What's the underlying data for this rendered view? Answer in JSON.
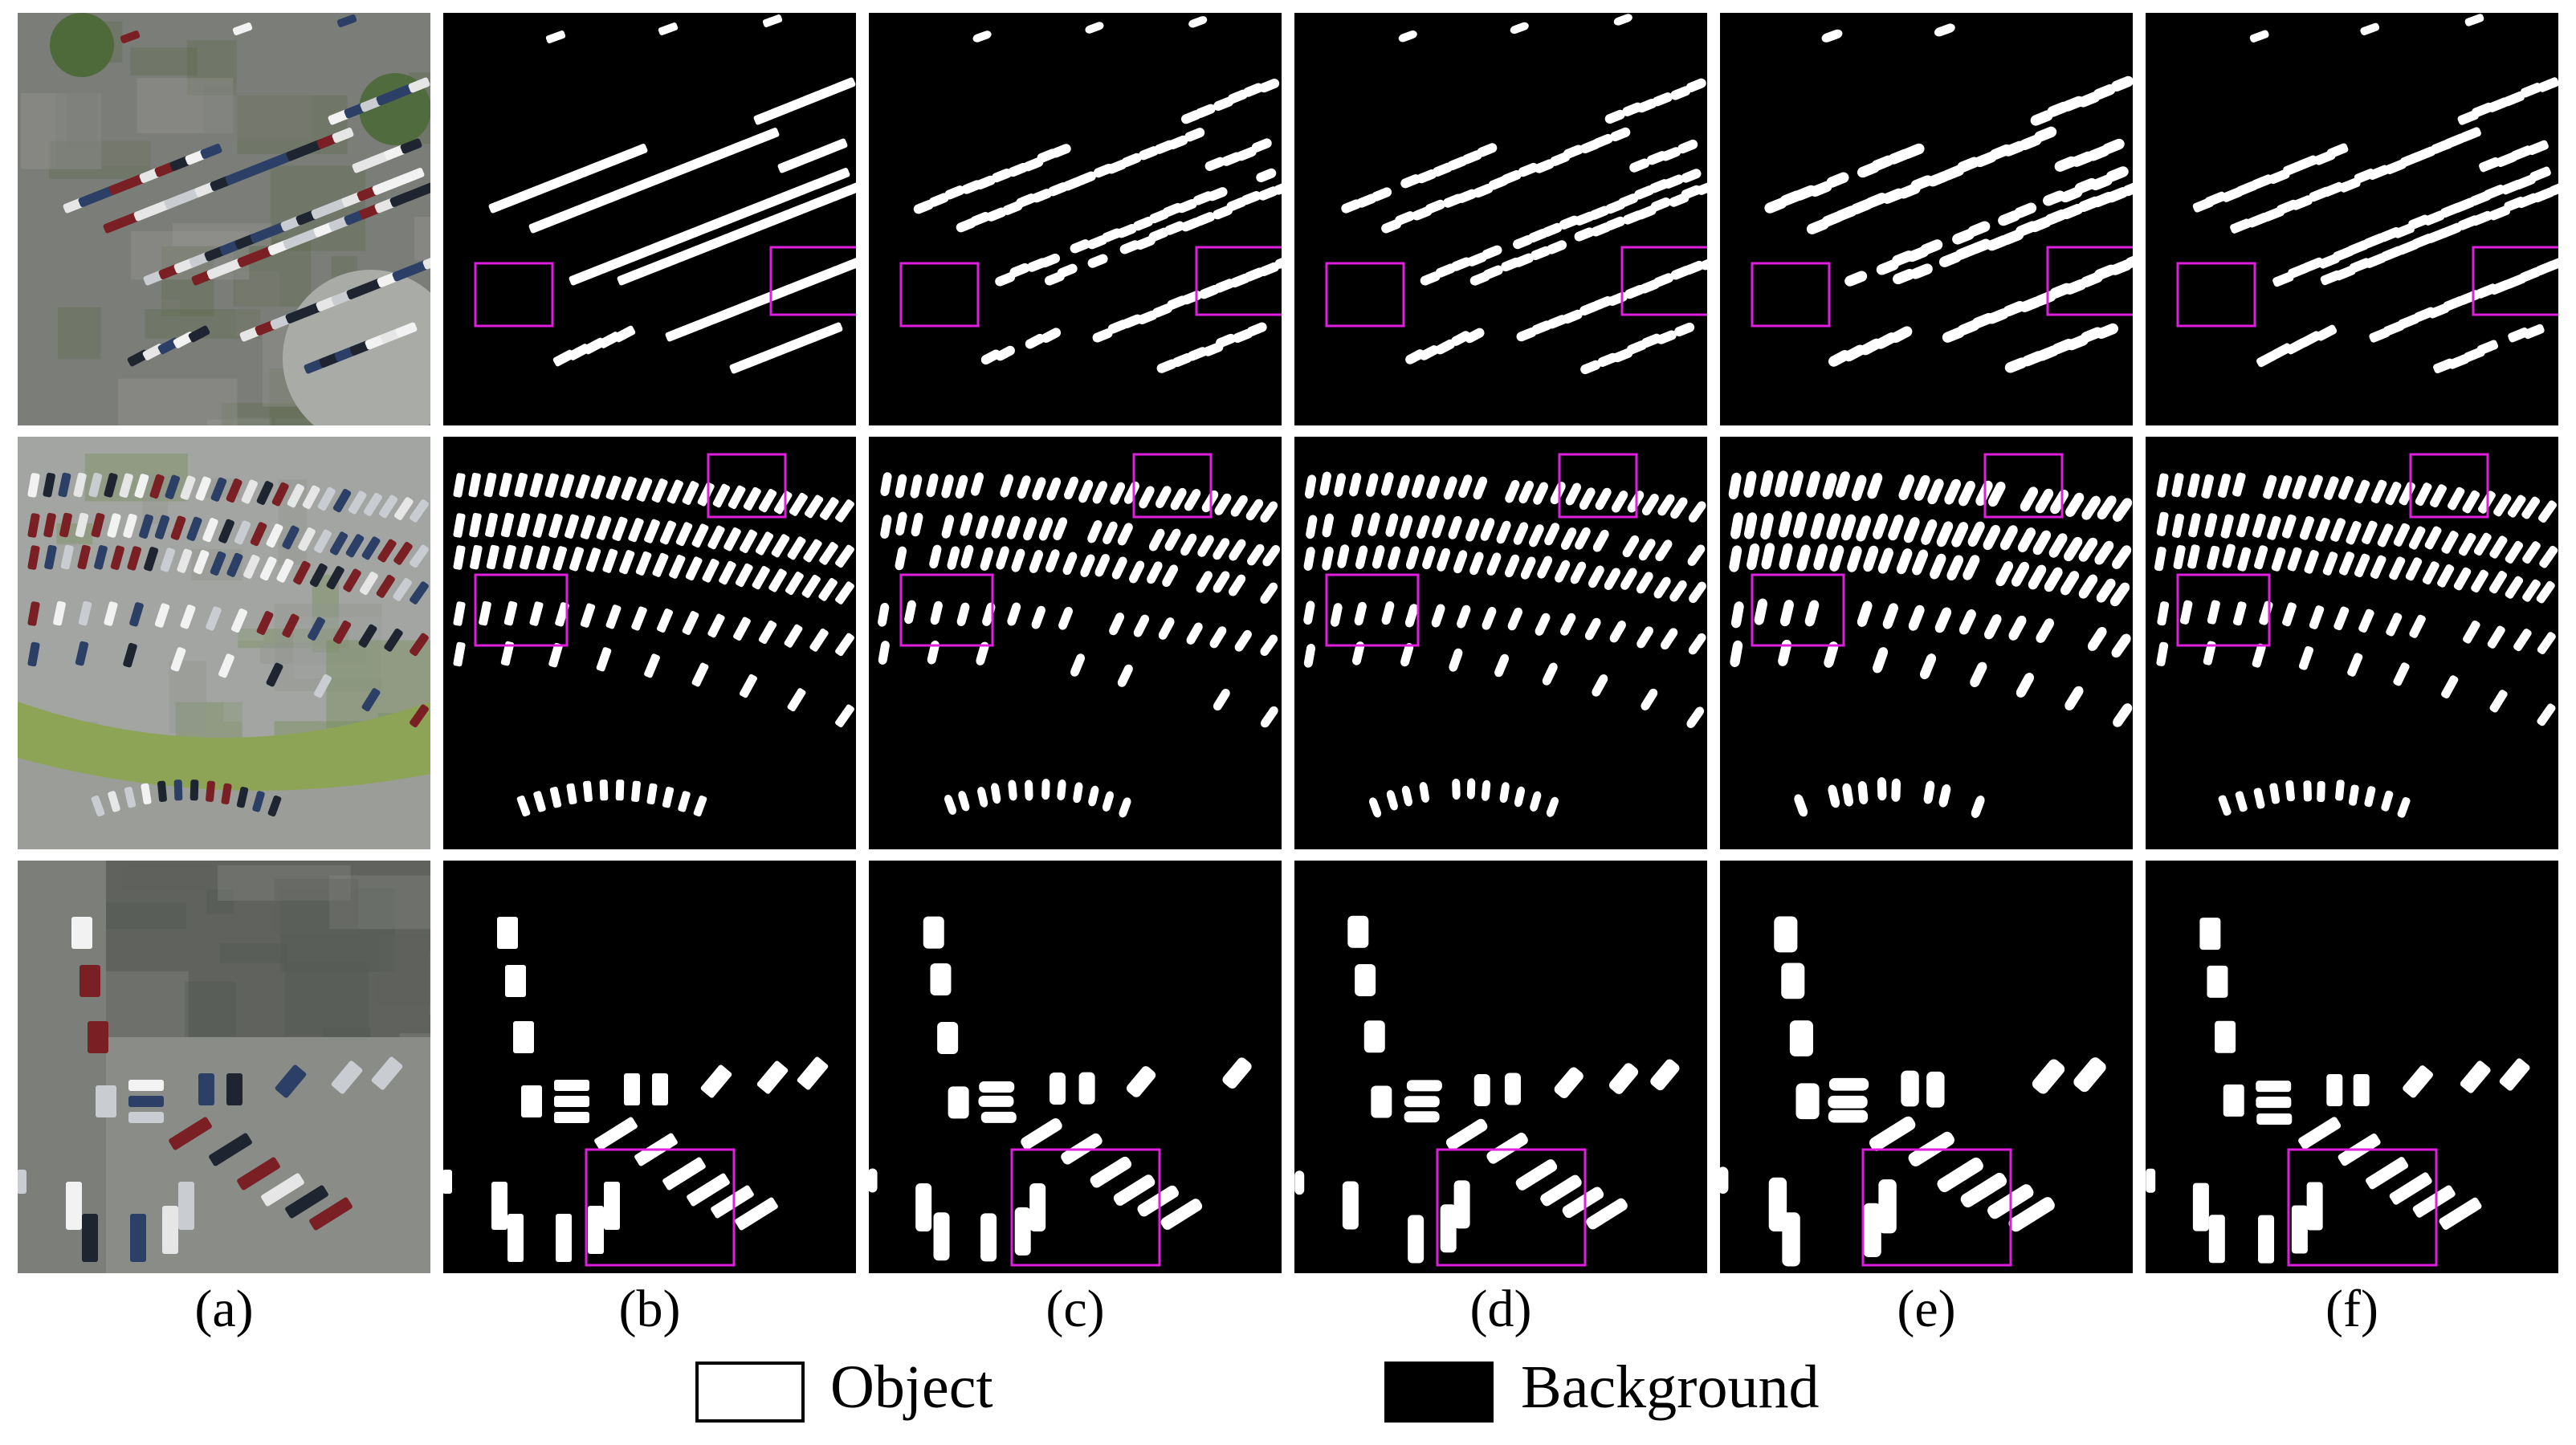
{
  "figure": {
    "column_labels": [
      "(a)",
      "(b)",
      "(c)",
      "(d)",
      "(e)",
      "(f)"
    ],
    "rows": [
      {
        "scene": "parking lot with diagonal rows",
        "photo_palette": [
          "#7b7d79",
          "#5c6b4a",
          "#9a9c98"
        ]
      },
      {
        "scene": "curved parking rows",
        "photo_palette": [
          "#a3a5a2",
          "#6f8a4c",
          "#8e918d"
        ]
      },
      {
        "scene": "parking area with lanes",
        "photo_palette": [
          "#5f625d",
          "#545a52",
          "#8a8c88"
        ]
      }
    ],
    "legend": {
      "object_label": "Object",
      "background_label": "Background"
    },
    "colors": {
      "object": "#ffffff",
      "background": "#000000",
      "highlight_box": "#e01ee0"
    }
  }
}
